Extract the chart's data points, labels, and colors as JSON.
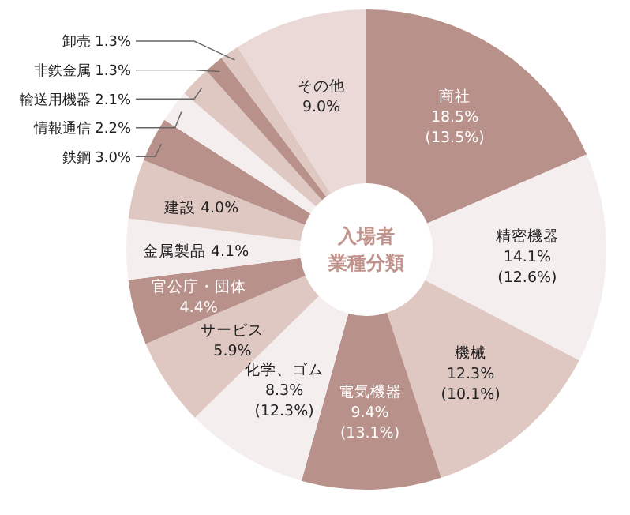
{
  "chart_data": {
    "type": "donut",
    "title": "入場者業種分類",
    "categories": [
      "商社",
      "精密機器",
      "機械",
      "電気機器",
      "化学、ゴム",
      "サービス",
      "官公庁・団体",
      "金属製品",
      "建設",
      "鉄鋼",
      "情報通信",
      "輸送用機器",
      "非鉄金属",
      "卸売",
      "その他"
    ],
    "values": [
      18.5,
      14.1,
      12.3,
      9.4,
      8.3,
      5.9,
      4.4,
      4.1,
      4.0,
      3.0,
      2.2,
      2.1,
      1.3,
      1.3,
      9.0
    ],
    "value_labels": [
      "18.5%\n(13.5%)",
      "14.1%\n(12.6%)",
      "12.3%\n(10.1%)",
      "9.4%\n(13.1%)",
      "8.3%\n(12.3%)",
      "5.9%",
      "4.4%",
      "4.1%",
      "4.0%",
      "3.0%",
      "2.2%",
      "2.1%",
      "1.3%",
      "1.3%",
      "9.0%"
    ],
    "colors": [
      "#b9918b",
      "#f5eeee",
      "#dfc7c2",
      "#b9918b",
      "#f5eeee",
      "#dfc7c2",
      "#b9918b",
      "#f5eeee",
      "#dfc7c2",
      "#b9918b",
      "#f5eeee",
      "#dfc7c2",
      "#b9918b",
      "#dfc7c2",
      "#ead9d6"
    ]
  }
}
